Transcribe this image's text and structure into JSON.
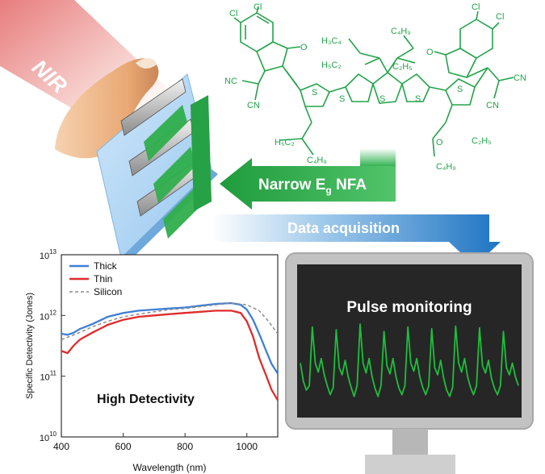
{
  "nir_label": "NIR",
  "arrows": {
    "nfa_label_main": "Narrow E",
    "nfa_label_sub": "g",
    "nfa_label_end": " NFA",
    "data_acq_label": "Data acquisition"
  },
  "molecule": {
    "labels": [
      "Cl",
      "Cl",
      "Cl",
      "Cl",
      "O",
      "O",
      "NC",
      "CN",
      "CN",
      "CN",
      "S",
      "S",
      "S",
      "S",
      "S",
      "O"
    ],
    "alkyl_top_left_1": "H₃C₄",
    "alkyl_top_left_2": "H₅C₂",
    "alkyl_top_right_1": "C₄H₉",
    "alkyl_top_right_2": "C₂H₅",
    "alkyl_bottom_left_1": "H₅C₂",
    "alkyl_bottom_left_2": "C₄H₉",
    "alkyl_bottom_right_1": "C₂H₅",
    "alkyl_bottom_right_2": "C₄H₉"
  },
  "monitor": {
    "title": "Pulse monitoring"
  },
  "chart_data": {
    "type": "line",
    "title": "High Detectivity",
    "xlabel": "Wavelength (nm)",
    "ylabel": "Specific Detectivity (Jones)",
    "xlim": [
      400,
      1100
    ],
    "ylim": [
      10000000000.0,
      10000000000000.0
    ],
    "yscale": "log",
    "x_ticks": [
      "400",
      "600",
      "800",
      "1000"
    ],
    "y_ticks": [
      {
        "base": "10",
        "exp": "10"
      },
      {
        "base": "10",
        "exp": "11"
      },
      {
        "base": "10",
        "exp": "12"
      },
      {
        "base": "10",
        "exp": "13"
      }
    ],
    "legend_position": "top-left",
    "series": [
      {
        "name": "Thick",
        "color": "#3f7fd6",
        "style": "solid",
        "x": [
          400,
          420,
          440,
          460,
          500,
          550,
          600,
          650,
          700,
          750,
          800,
          850,
          900,
          950,
          980,
          1000,
          1020,
          1040,
          1060,
          1080,
          1100
        ],
        "y": [
          500000000000.0,
          480000000000.0,
          520000000000.0,
          600000000000.0,
          720000000000.0,
          950000000000.0,
          1100000000000.0,
          1200000000000.0,
          1250000000000.0,
          1300000000000.0,
          1350000000000.0,
          1450000000000.0,
          1550000000000.0,
          1600000000000.0,
          1500000000000.0,
          1250000000000.0,
          850000000000.0,
          500000000000.0,
          280000000000.0,
          160000000000.0,
          110000000000.0
        ]
      },
      {
        "name": "Thin",
        "color": "#e02b2b",
        "style": "solid",
        "x": [
          400,
          420,
          440,
          460,
          500,
          550,
          600,
          650,
          700,
          750,
          800,
          850,
          900,
          950,
          980,
          1000,
          1020,
          1040,
          1060,
          1080,
          1100
        ],
        "y": [
          260000000000.0,
          240000000000.0,
          320000000000.0,
          400000000000.0,
          520000000000.0,
          700000000000.0,
          850000000000.0,
          950000000000.0,
          1000000000000.0,
          1050000000000.0,
          1100000000000.0,
          1150000000000.0,
          1200000000000.0,
          1200000000000.0,
          1100000000000.0,
          800000000000.0,
          450000000000.0,
          200000000000.0,
          110000000000.0,
          60000000000.0,
          40000000000.0
        ]
      },
      {
        "name": "Silicon",
        "color": "#8c8c8c",
        "style": "dashed",
        "x": [
          400,
          450,
          500,
          550,
          600,
          650,
          700,
          750,
          800,
          850,
          900,
          950,
          1000,
          1040,
          1070,
          1100
        ],
        "y": [
          400000000000.0,
          500000000000.0,
          650000000000.0,
          800000000000.0,
          950000000000.0,
          1050000000000.0,
          1150000000000.0,
          1250000000000.0,
          1300000000000.0,
          1400000000000.0,
          1500000000000.0,
          1600000000000.0,
          1500000000000.0,
          1200000000000.0,
          800000000000.0,
          500000000000.0
        ]
      }
    ]
  },
  "pulse_data": {
    "type": "line",
    "color": "#1dbf3c",
    "values": [
      0.55,
      0.35,
      0.25,
      0.3,
      0.95,
      0.55,
      0.45,
      0.6,
      0.42,
      0.3,
      0.2,
      0.28,
      0.92,
      0.5,
      0.42,
      0.58,
      0.4,
      0.28,
      0.18,
      0.3,
      0.98,
      0.55,
      0.44,
      0.6,
      0.4,
      0.27,
      0.18,
      0.3,
      0.9,
      0.52,
      0.43,
      0.6,
      0.4,
      0.27,
      0.2,
      0.3,
      0.95,
      0.55,
      0.46,
      0.6,
      0.4,
      0.28,
      0.2,
      0.3,
      0.93,
      0.5,
      0.42,
      0.58,
      0.38,
      0.25,
      0.18,
      0.28,
      0.96,
      0.55,
      0.45,
      0.6,
      0.4,
      0.28,
      0.2,
      0.3,
      0.94,
      0.52,
      0.44,
      0.58,
      0.38,
      0.27,
      0.2,
      0.3,
      0.9,
      0.5,
      0.42,
      0.55,
      0.4,
      0.3
    ]
  },
  "colors": {
    "nfa_arrow": "#22a843",
    "data_arrow": "#1f74c3",
    "molecule": "#23a34a",
    "monitor_body": "#bfbfbf",
    "screen": "#262626",
    "nir_beam": "#f0b8b4"
  }
}
